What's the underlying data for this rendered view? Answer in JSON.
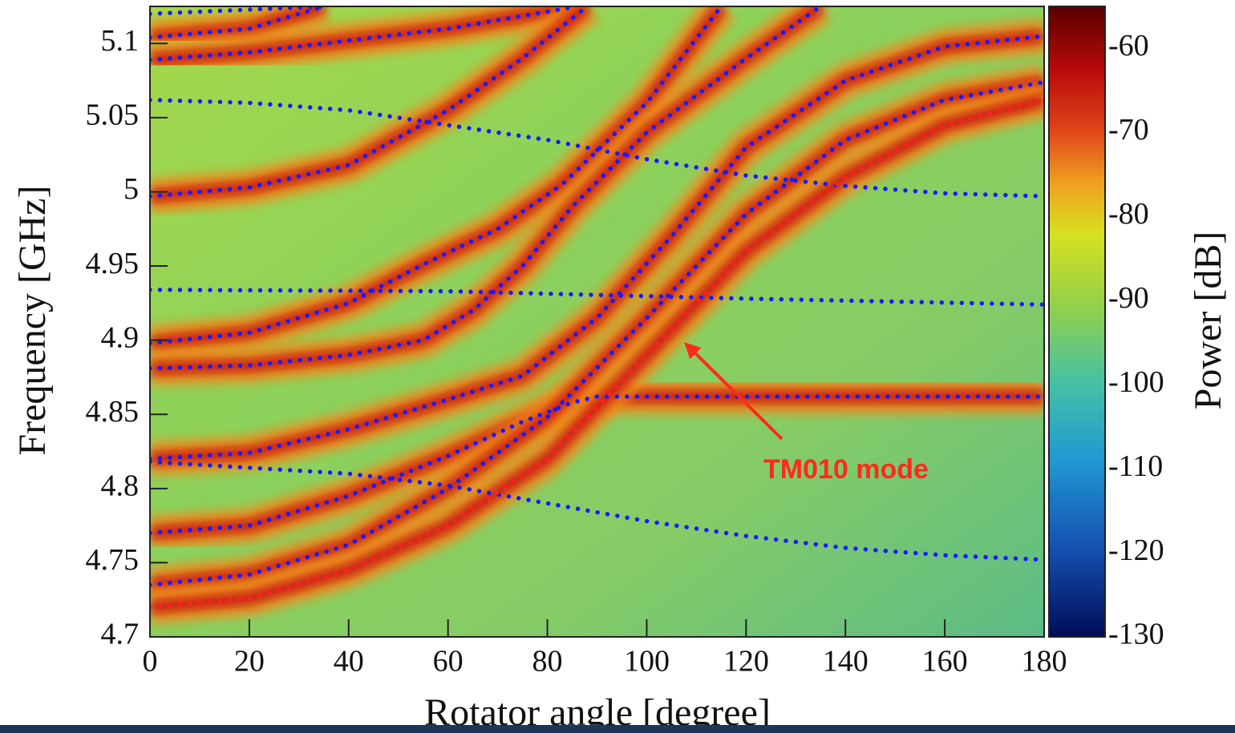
{
  "chart_data": {
    "type": "heatmap",
    "x_label": "Rotator angle [degree]",
    "y_label": "Frequency [GHz]",
    "colorbar_label": "Power [dB]",
    "annotation": "TM010 mode",
    "annotation_color": "#ff2a1a",
    "xlim": [
      0,
      180
    ],
    "xticks": [
      0,
      20,
      40,
      60,
      80,
      100,
      120,
      140,
      160,
      180
    ],
    "ylim": [
      4.7,
      5.125
    ],
    "yticks": [
      4.7,
      4.75,
      4.8,
      4.85,
      4.9,
      4.95,
      5,
      5.05,
      5.1
    ],
    "zlim": [
      -130,
      -55
    ],
    "zticks": [
      -60,
      -70,
      -80,
      -90,
      -100,
      -110,
      -120,
      -130
    ],
    "series": [
      {
        "color": "#1a1aff",
        "x": [
          0,
          35
        ],
        "values": [
          5.12,
          5.125
        ]
      },
      {
        "color": "#1a1aff",
        "x": [
          0,
          20,
          35
        ],
        "values": [
          5.104,
          5.11,
          5.125
        ]
      },
      {
        "color": "#1a1aff",
        "x": [
          0,
          20,
          40,
          60,
          86
        ],
        "values": [
          5.089,
          5.094,
          5.102,
          5.11,
          5.125
        ]
      },
      {
        "color": "#1a1aff",
        "x": [
          0,
          20,
          40,
          60,
          80,
          100,
          120,
          140,
          160,
          180
        ],
        "values": [
          5.062,
          5.06,
          5.055,
          5.045,
          5.035,
          5.022,
          5.011,
          5.004,
          4.999,
          4.997
        ]
      },
      {
        "color": "#1a1aff",
        "x": [
          0,
          20,
          40,
          60,
          75,
          88
        ],
        "values": [
          4.997,
          5.003,
          5.018,
          5.055,
          5.09,
          5.125
        ]
      },
      {
        "color": "#1a1aff",
        "x": [
          0,
          20,
          40,
          55,
          70,
          83,
          100,
          115
        ],
        "values": [
          4.898,
          4.905,
          4.925,
          4.951,
          4.975,
          5.005,
          5.06,
          5.125
        ]
      },
      {
        "color": "#1a1aff",
        "x": [
          0,
          60,
          120,
          180
        ],
        "values": [
          4.934,
          4.933,
          4.928,
          4.924
        ]
      },
      {
        "color": "#1a1aff",
        "x": [
          0,
          20,
          40,
          55,
          65,
          75,
          85,
          100,
          120,
          135
        ],
        "values": [
          4.881,
          4.883,
          4.89,
          4.9,
          4.92,
          4.95,
          4.99,
          5.04,
          5.09,
          5.125
        ]
      },
      {
        "color": "#1a1aff",
        "x": [
          0,
          20,
          40,
          60,
          75,
          90,
          105,
          120,
          140,
          160,
          180
        ],
        "values": [
          4.82,
          4.824,
          4.84,
          4.86,
          4.876,
          4.915,
          4.97,
          5.03,
          5.075,
          5.098,
          5.105
        ]
      },
      {
        "color": "#1a1aff",
        "x": [
          0,
          40,
          60,
          80,
          100,
          120,
          140,
          160,
          180
        ],
        "values": [
          4.818,
          4.81,
          4.802,
          4.79,
          4.778,
          4.768,
          4.76,
          4.755,
          4.752
        ]
      },
      {
        "color": "#1a1aff",
        "x": [
          0,
          20,
          40,
          60,
          75,
          85,
          90,
          120,
          180
        ],
        "values": [
          4.77,
          4.775,
          4.795,
          4.822,
          4.845,
          4.858,
          4.862,
          4.862,
          4.862
        ]
      },
      {
        "color": "#1a1aff",
        "x": [
          0,
          20,
          40,
          60,
          80,
          100,
          120,
          140,
          160,
          180
        ],
        "values": [
          4.735,
          4.742,
          4.762,
          4.8,
          4.848,
          4.915,
          4.985,
          5.035,
          5.062,
          5.074
        ]
      },
      {
        "color": "#ff2020",
        "x": [
          0,
          20,
          40,
          60,
          80,
          100,
          120,
          140,
          160,
          180
        ],
        "values": [
          4.72,
          4.726,
          4.745,
          4.775,
          4.82,
          4.89,
          4.96,
          5.01,
          5.045,
          5.062
        ]
      }
    ]
  }
}
